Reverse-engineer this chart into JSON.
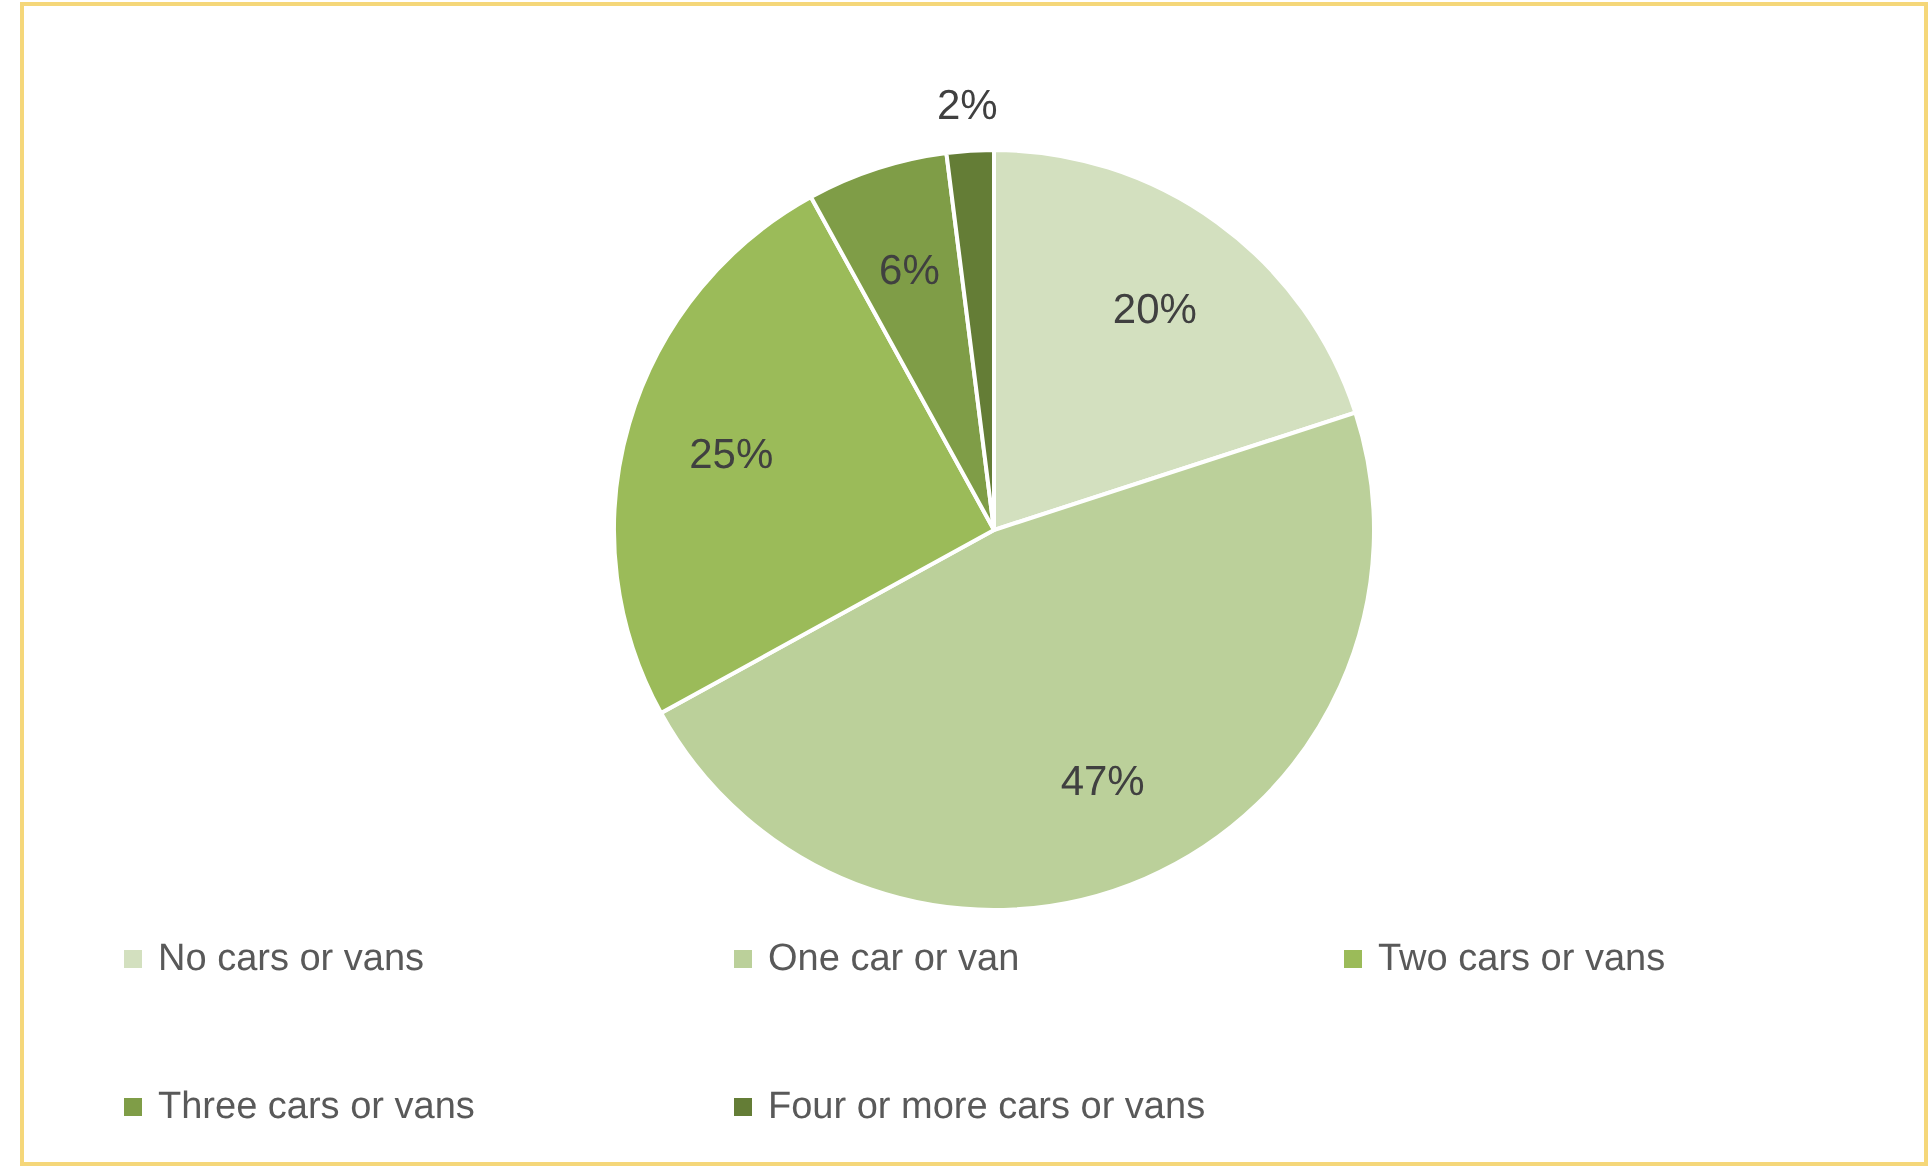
{
  "chart_data": {
    "type": "pie",
    "categories": [
      "No cars or vans",
      "One car or van",
      "Two cars or vans",
      "Three cars or vans",
      "Four or more cars or vans"
    ],
    "values": [
      20,
      47,
      25,
      6,
      2
    ],
    "colors": [
      "#d3e0bf",
      "#bbd09a",
      "#9bbb59",
      "#7f9d47",
      "#647d36"
    ],
    "value_labels": [
      "20%",
      "47%",
      "25%",
      "6%",
      "2%"
    ],
    "legend": "bottom"
  }
}
